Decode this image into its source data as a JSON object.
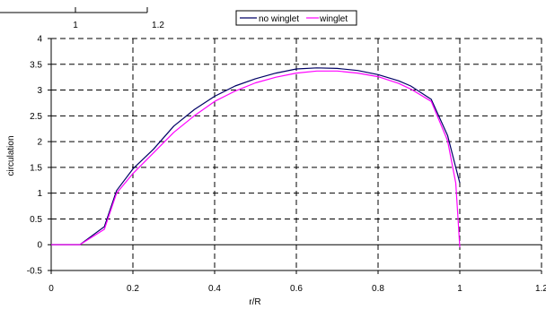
{
  "chart_data": {
    "type": "line",
    "xlabel": "r/R",
    "ylabel": "circulation",
    "xlim": [
      0,
      1.2
    ],
    "ylim": [
      -0.5,
      4
    ],
    "x_ticks": [
      "0",
      "0.2",
      "0.4",
      "0.6",
      "0.8",
      "1",
      "1.2"
    ],
    "y_ticks": [
      "-0.5",
      "0",
      "0.5",
      "1",
      "1.5",
      "2",
      "2.5",
      "3",
      "3.5",
      "4"
    ],
    "grid": "dashed",
    "legend_position": "top-center",
    "top_axis_fragment_ticks": [
      "1",
      "1.2"
    ],
    "series": [
      {
        "name": "no winglet",
        "color": "#000066",
        "points": [
          [
            0,
            0
          ],
          [
            0.07,
            0
          ],
          [
            0.13,
            0.35
          ],
          [
            0.16,
            1.05
          ],
          [
            0.2,
            1.47
          ],
          [
            0.25,
            1.85
          ],
          [
            0.3,
            2.3
          ],
          [
            0.35,
            2.62
          ],
          [
            0.4,
            2.88
          ],
          [
            0.45,
            3.08
          ],
          [
            0.5,
            3.22
          ],
          [
            0.55,
            3.33
          ],
          [
            0.6,
            3.41
          ],
          [
            0.65,
            3.43
          ],
          [
            0.7,
            3.42
          ],
          [
            0.75,
            3.38
          ],
          [
            0.8,
            3.3
          ],
          [
            0.85,
            3.18
          ],
          [
            0.88,
            3.08
          ],
          [
            0.93,
            2.82
          ],
          [
            0.97,
            2.12
          ],
          [
            0.99,
            1.5
          ],
          [
            1.0,
            1.2
          ]
        ]
      },
      {
        "name": "winglet",
        "color": "#ff00ff",
        "points": [
          [
            0,
            0
          ],
          [
            0.07,
            0
          ],
          [
            0.13,
            0.3
          ],
          [
            0.16,
            1.0
          ],
          [
            0.2,
            1.38
          ],
          [
            0.25,
            1.78
          ],
          [
            0.3,
            2.18
          ],
          [
            0.35,
            2.5
          ],
          [
            0.4,
            2.78
          ],
          [
            0.45,
            2.98
          ],
          [
            0.5,
            3.14
          ],
          [
            0.55,
            3.25
          ],
          [
            0.6,
            3.33
          ],
          [
            0.65,
            3.37
          ],
          [
            0.7,
            3.37
          ],
          [
            0.75,
            3.33
          ],
          [
            0.8,
            3.26
          ],
          [
            0.85,
            3.13
          ],
          [
            0.88,
            3.02
          ],
          [
            0.93,
            2.78
          ],
          [
            0.97,
            2.02
          ],
          [
            0.99,
            1.2
          ],
          [
            0.995,
            0.6
          ],
          [
            1.0,
            -0.05
          ]
        ]
      }
    ]
  }
}
